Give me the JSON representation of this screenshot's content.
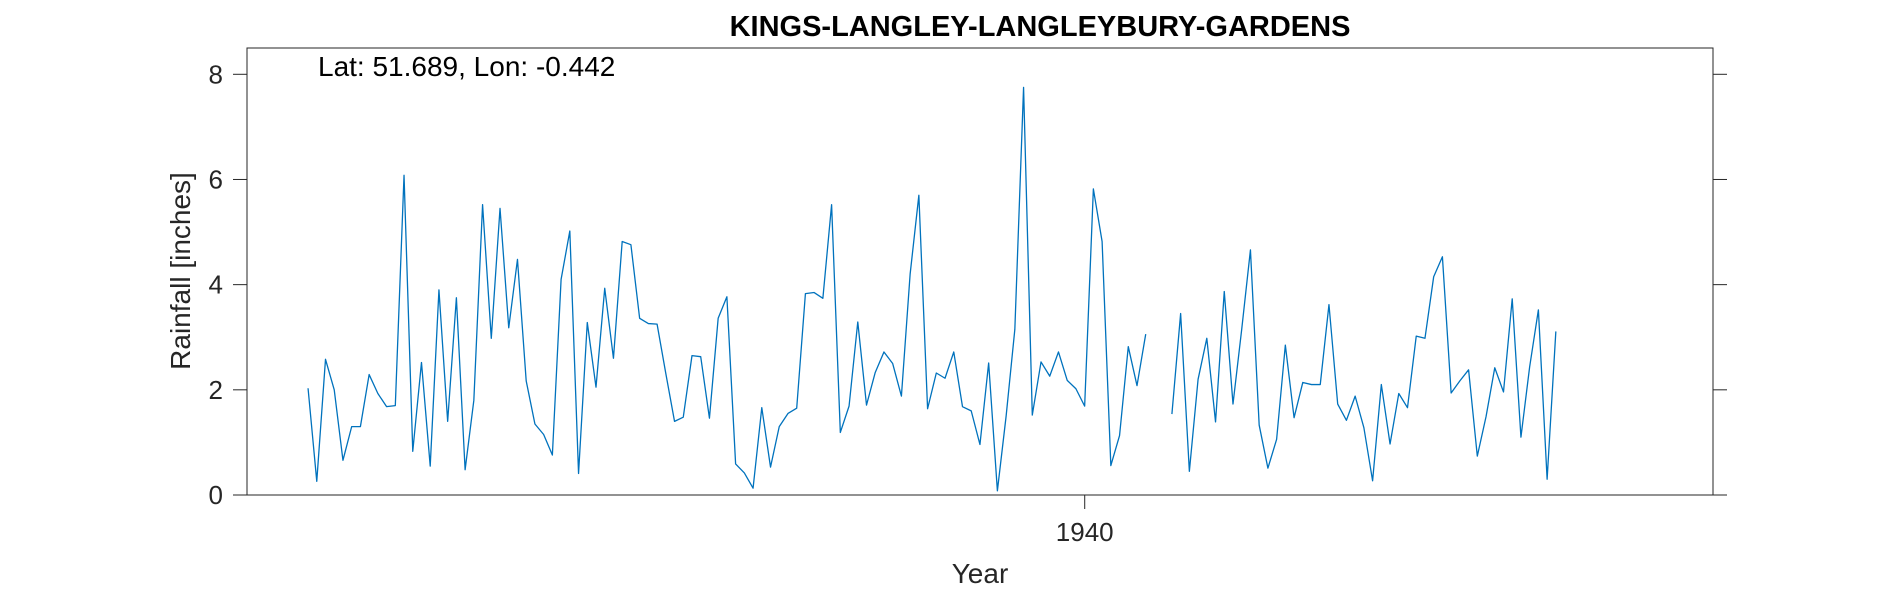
{
  "chart_data": {
    "type": "line",
    "title": "KINGS-LANGLEY-LANGLEYBURY-GARDENS",
    "annotation": "Lat: 51.689, Lon: -0.442",
    "xlabel": "Year",
    "ylabel": "Rainfall [inches]",
    "xlim": [
      1932.0,
      1946.0
    ],
    "ylim": [
      0,
      8.5
    ],
    "x_ticks": [
      1940
    ],
    "x_tick_labels": [
      "1940"
    ],
    "y_ticks": [
      0,
      2,
      4,
      6,
      8
    ],
    "y_tick_labels": [
      "0",
      "2",
      "4",
      "6",
      "8"
    ],
    "grid": false,
    "line_color": "#0072BD",
    "x_start": 1932.583,
    "x_step": 0.08333,
    "series": [
      {
        "values": [
          2.03,
          0.26,
          2.58,
          2.0,
          0.66,
          1.3,
          1.3,
          2.29,
          1.93,
          1.68,
          1.7,
          6.08,
          0.83,
          2.52,
          0.55,
          3.9,
          1.4,
          3.75,
          0.48,
          1.8,
          5.52,
          2.98,
          5.45,
          3.18,
          4.48,
          2.17,
          1.35,
          1.15,
          0.76,
          4.1,
          5.02,
          0.41,
          3.28,
          2.05,
          3.93,
          2.6,
          4.82,
          4.76,
          3.36,
          3.26,
          3.25,
          2.31,
          1.4,
          1.48,
          2.65,
          2.63,
          1.46,
          3.36,
          3.77,
          0.59,
          0.42,
          0.13,
          1.66,
          0.53,
          1.3,
          1.55,
          1.65,
          3.83,
          3.85,
          3.74,
          5.52,
          1.19,
          1.69,
          3.29,
          1.71,
          2.33,
          2.72,
          2.5,
          1.88,
          4.2,
          5.7,
          1.64,
          2.32,
          2.22,
          2.72,
          1.68,
          1.6,
          0.96,
          2.51,
          0.08,
          1.5,
          3.15,
          7.75,
          1.52,
          2.53,
          2.26,
          2.72,
          2.18,
          2.02,
          1.69,
          5.82,
          4.82,
          0.56,
          1.13,
          2.82,
          2.08,
          3.06,
          null,
          null,
          1.54,
          3.45,
          0.45,
          2.2,
          2.98,
          1.39,
          3.87,
          1.73,
          3.15,
          4.66,
          1.33,
          0.51,
          1.06,
          2.85,
          1.47,
          2.14,
          2.1,
          2.1,
          3.62,
          1.73,
          1.42,
          1.88,
          1.28,
          0.27,
          2.1,
          0.97,
          1.93,
          1.66,
          3.02,
          2.98,
          4.15,
          4.53,
          1.94,
          2.17,
          2.38,
          0.74,
          1.49,
          2.42,
          1.96,
          3.73,
          1.1,
          2.44,
          3.52,
          0.3,
          3.11
        ]
      }
    ]
  }
}
